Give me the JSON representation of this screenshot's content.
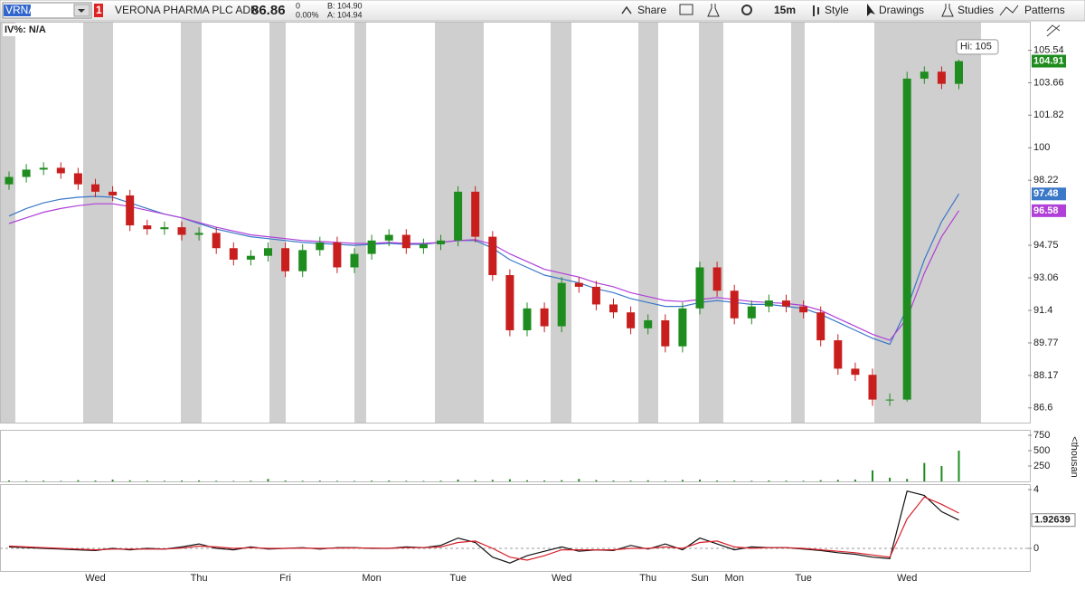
{
  "toolbar": {
    "symbol": "VRNA",
    "badge": "1",
    "description": "VERONA PHARMA PLC ADR",
    "last": "86.86",
    "change": "0",
    "change_pct": "0.00%",
    "bid": "B: 104.90",
    "ask": "A: 104.94",
    "buttons": [
      "Share",
      "15m",
      "Style",
      "Drawings",
      "Studies",
      "Patterns"
    ]
  },
  "iv": "IV%: N/A",
  "chart_data": [
    {
      "type": "candlestick",
      "log": true,
      "annotation": "Hi: 105",
      "up_color": "#1e8c1e",
      "down_color": "#c81e1e",
      "categories": [
        null,
        null,
        null,
        null,
        null,
        "Wed",
        null,
        null,
        null,
        null,
        null,
        "Thu",
        null,
        null,
        null,
        null,
        "Fri",
        null,
        null,
        null,
        null,
        "Mon",
        null,
        null,
        null,
        null,
        "Tue",
        null,
        null,
        null,
        null,
        null,
        "Wed",
        null,
        null,
        null,
        null,
        "Thu",
        null,
        null,
        "Sun",
        null,
        "Mon",
        null,
        null,
        null,
        "Tue",
        null,
        null,
        null,
        null,
        null,
        "Wed",
        null,
        null,
        null
      ],
      "open": [
        98.0,
        98.4,
        98.8,
        98.9,
        98.6,
        98.0,
        97.6,
        97.4,
        95.8,
        95.6,
        95.7,
        95.3,
        95.4,
        94.6,
        94.0,
        94.2,
        94.6,
        93.4,
        94.5,
        94.9,
        93.6,
        94.3,
        95.0,
        95.3,
        94.6,
        94.8,
        95.0,
        97.6,
        95.2,
        93.2,
        90.4,
        91.5,
        90.6,
        92.8,
        92.6,
        91.7,
        91.3,
        90.5,
        90.9,
        89.6,
        91.5,
        93.6,
        92.4,
        91.0,
        91.6,
        91.9,
        91.6,
        91.3,
        89.9,
        88.5,
        88.2,
        87.0,
        87.0,
        103.9,
        104.3,
        103.6
      ],
      "high": [
        98.7,
        99.1,
        99.2,
        99.2,
        98.9,
        98.3,
        97.9,
        97.7,
        96.1,
        96.0,
        96.0,
        95.7,
        95.7,
        94.9,
        94.5,
        94.9,
        94.9,
        94.8,
        95.2,
        95.2,
        94.6,
        95.3,
        95.6,
        95.6,
        95.1,
        95.3,
        97.9,
        97.9,
        95.5,
        93.5,
        91.8,
        91.8,
        93.1,
        93.1,
        92.9,
        92.0,
        91.6,
        91.2,
        91.2,
        91.8,
        93.9,
        93.9,
        92.7,
        91.9,
        92.2,
        92.2,
        91.9,
        91.6,
        90.2,
        88.8,
        88.5,
        87.3,
        104.3,
        104.6,
        104.6,
        105.0
      ],
      "low": [
        97.7,
        98.1,
        98.5,
        98.3,
        97.7,
        97.3,
        97.1,
        95.5,
        95.3,
        95.3,
        95.0,
        95.0,
        94.3,
        93.7,
        93.7,
        93.9,
        93.1,
        93.1,
        94.2,
        93.3,
        93.3,
        94.0,
        94.7,
        94.3,
        94.3,
        94.5,
        94.7,
        94.9,
        92.9,
        90.1,
        90.1,
        90.3,
        90.3,
        92.3,
        91.4,
        91.0,
        90.2,
        90.2,
        89.3,
        89.3,
        91.2,
        92.1,
        90.7,
        90.7,
        91.3,
        91.3,
        91.0,
        89.6,
        88.2,
        87.9,
        86.7,
        86.7,
        86.9,
        103.6,
        103.3,
        103.3
      ],
      "close": [
        98.4,
        98.8,
        98.9,
        98.6,
        98.0,
        97.6,
        97.4,
        95.8,
        95.6,
        95.7,
        95.3,
        95.4,
        94.6,
        94.0,
        94.2,
        94.6,
        93.4,
        94.5,
        94.9,
        93.6,
        94.3,
        95.0,
        95.3,
        94.6,
        94.8,
        95.0,
        97.6,
        95.2,
        93.2,
        90.4,
        91.5,
        90.6,
        92.8,
        92.6,
        91.7,
        91.3,
        90.5,
        90.9,
        89.6,
        91.5,
        93.6,
        92.4,
        91.0,
        91.6,
        91.9,
        91.6,
        91.3,
        89.9,
        88.5,
        88.2,
        87.0,
        87.0,
        103.9,
        104.3,
        103.6,
        104.91
      ],
      "lines": [
        {
          "color": "#3a78c8",
          "values": [
            96.3,
            96.7,
            97.0,
            97.2,
            97.3,
            97.35,
            97.3,
            97.0,
            96.7,
            96.4,
            96.2,
            95.9,
            95.6,
            95.4,
            95.2,
            95.1,
            95.0,
            94.9,
            94.85,
            94.8,
            94.75,
            94.8,
            94.85,
            94.8,
            94.8,
            94.9,
            95.0,
            95.0,
            94.6,
            94.0,
            93.6,
            93.2,
            93.0,
            92.8,
            92.5,
            92.3,
            92.0,
            91.8,
            91.6,
            91.6,
            91.8,
            91.9,
            91.8,
            91.7,
            91.7,
            91.6,
            91.5,
            91.2,
            90.8,
            90.4,
            90.0,
            89.7,
            91.5,
            94.0,
            96.0,
            97.48
          ]
        },
        {
          "color": "#b040d8",
          "values": [
            95.9,
            96.2,
            96.5,
            96.7,
            96.85,
            96.95,
            96.95,
            96.8,
            96.6,
            96.4,
            96.2,
            95.95,
            95.7,
            95.5,
            95.3,
            95.2,
            95.1,
            95.0,
            94.95,
            94.9,
            94.85,
            94.85,
            94.9,
            94.85,
            94.85,
            94.9,
            95.0,
            95.05,
            94.8,
            94.3,
            93.9,
            93.5,
            93.3,
            93.1,
            92.8,
            92.6,
            92.3,
            92.1,
            91.9,
            91.85,
            91.95,
            92.05,
            91.95,
            91.85,
            91.8,
            91.75,
            91.65,
            91.4,
            91.0,
            90.6,
            90.2,
            89.9,
            91.0,
            93.3,
            95.2,
            96.58
          ]
        }
      ],
      "ylim": [
        85.9,
        106.9
      ],
      "yticks": [
        86.6,
        88.17,
        89.77,
        91.4,
        93.06,
        94.75,
        98.22,
        100,
        101.82,
        103.66,
        105.54
      ]
    },
    {
      "type": "bar",
      "color": "#1e8c1e",
      "y_label": "<thousan",
      "values": [
        15,
        10,
        12,
        8,
        20,
        14,
        30,
        18,
        12,
        10,
        14,
        16,
        10,
        8,
        12,
        40,
        14,
        10,
        12,
        9,
        8,
        12,
        14,
        10,
        8,
        12,
        30,
        20,
        25,
        35,
        18,
        15,
        20,
        40,
        22,
        14,
        12,
        18,
        10,
        25,
        30,
        14,
        12,
        10,
        15,
        12,
        10,
        20,
        25,
        30,
        180,
        60,
        40,
        300,
        250,
        500
      ],
      "ylim": [
        0,
        800
      ],
      "yticks": [
        250,
        500,
        750
      ]
    },
    {
      "type": "line",
      "series": [
        {
          "color": "#111111",
          "values": [
            0.1,
            0.05,
            0,
            -0.05,
            -0.1,
            -0.15,
            0,
            -0.1,
            0,
            -0.05,
            0.1,
            0.3,
            0,
            -0.1,
            0.1,
            -0.05,
            0,
            0.05,
            -0.05,
            0.05,
            0.05,
            0,
            0,
            0.1,
            0.05,
            0.2,
            0.7,
            0.4,
            -0.6,
            -1.0,
            -0.5,
            -0.2,
            0.1,
            -0.2,
            -0.1,
            -0.15,
            0.2,
            -0.05,
            0.3,
            -0.1,
            0.7,
            0.3,
            -0.1,
            0.1,
            0.05,
            0.05,
            -0.05,
            -0.15,
            -0.3,
            -0.4,
            -0.6,
            -0.7,
            3.9,
            3.6,
            2.5,
            1.92639
          ]
        },
        {
          "color": "#d8202a",
          "values": [
            0.15,
            0.1,
            0.05,
            0,
            -0.05,
            -0.1,
            -0.05,
            -0.05,
            -0.05,
            -0.05,
            0.02,
            0.15,
            0.1,
            0,
            0.05,
            0,
            0,
            0.02,
            0,
            0.02,
            0.03,
            0.02,
            0,
            0.05,
            0.05,
            0.1,
            0.4,
            0.5,
            0,
            -0.6,
            -0.8,
            -0.5,
            -0.1,
            -0.1,
            -0.1,
            -0.1,
            0,
            0,
            0.1,
            0,
            0.4,
            0.5,
            0.1,
            0,
            0.05,
            0.05,
            0,
            -0.1,
            -0.2,
            -0.3,
            -0.45,
            -0.6,
            2.0,
            3.5,
            3.0,
            2.4
          ]
        }
      ],
      "ylim": [
        -1.48,
        4.25
      ],
      "yticks": [
        0,
        4
      ]
    }
  ]
}
